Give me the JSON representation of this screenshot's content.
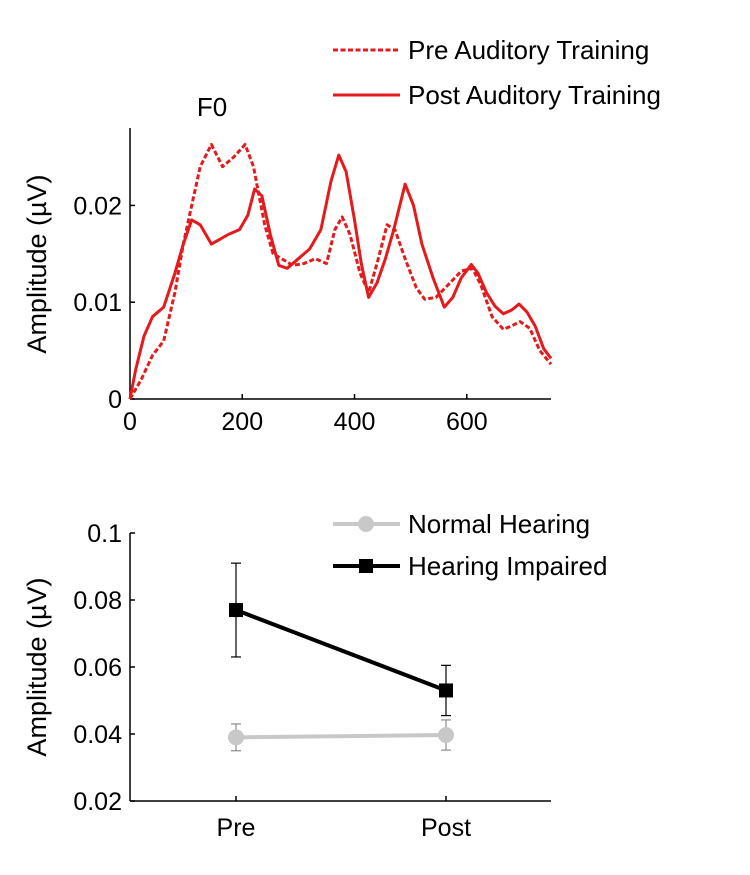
{
  "chart_data": [
    {
      "type": "line",
      "title": "F0",
      "xlabel": "",
      "ylabel": "Amplitude (µV)",
      "xlim": [
        0,
        750
      ],
      "ylim": [
        0,
        0.028
      ],
      "x_ticks": [
        "0",
        "200",
        "400",
        "600"
      ],
      "y_ticks": [
        "0",
        "0.01",
        "0.02"
      ],
      "grid": false,
      "legend_position": "top-right, outside",
      "series": [
        {
          "name": "Pre Auditory Training",
          "style": "dashed",
          "color": "#e41a1c",
          "points": [
            [
              0,
              0
            ],
            [
              20,
              0.002
            ],
            [
              40,
              0.0045
            ],
            [
              60,
              0.006
            ],
            [
              80,
              0.011
            ],
            [
              95,
              0.016
            ],
            [
              110,
              0.02
            ],
            [
              125,
              0.024
            ],
            [
              145,
              0.0263
            ],
            [
              165,
              0.024
            ],
            [
              185,
              0.025
            ],
            [
              205,
              0.0263
            ],
            [
              220,
              0.024
            ],
            [
              240,
              0.018
            ],
            [
              255,
              0.015
            ],
            [
              270,
              0.0145
            ],
            [
              290,
              0.0138
            ],
            [
              310,
              0.014
            ],
            [
              330,
              0.0145
            ],
            [
              350,
              0.014
            ],
            [
              365,
              0.0175
            ],
            [
              378,
              0.0188
            ],
            [
              392,
              0.017
            ],
            [
              410,
              0.013
            ],
            [
              425,
              0.011
            ],
            [
              440,
              0.014
            ],
            [
              458,
              0.018
            ],
            [
              472,
              0.0175
            ],
            [
              490,
              0.0145
            ],
            [
              510,
              0.0115
            ],
            [
              525,
              0.0103
            ],
            [
              545,
              0.0105
            ],
            [
              570,
              0.012
            ],
            [
              590,
              0.0132
            ],
            [
              610,
              0.0135
            ],
            [
              625,
              0.0118
            ],
            [
              645,
              0.0085
            ],
            [
              665,
              0.0072
            ],
            [
              678,
              0.0075
            ],
            [
              695,
              0.008
            ],
            [
              712,
              0.0073
            ],
            [
              730,
              0.005
            ],
            [
              750,
              0.0036
            ]
          ]
        },
        {
          "name": "Post Auditory Training",
          "style": "solid",
          "color": "#e41a1c",
          "points": [
            [
              0,
              0
            ],
            [
              10,
              0.003
            ],
            [
              25,
              0.0065
            ],
            [
              40,
              0.0085
            ],
            [
              60,
              0.0095
            ],
            [
              80,
              0.013
            ],
            [
              95,
              0.016
            ],
            [
              110,
              0.0185
            ],
            [
              125,
              0.018
            ],
            [
              145,
              0.016
            ],
            [
              160,
              0.0165
            ],
            [
              175,
              0.017
            ],
            [
              195,
              0.0175
            ],
            [
              210,
              0.019
            ],
            [
              222,
              0.0217
            ],
            [
              235,
              0.021
            ],
            [
              250,
              0.017
            ],
            [
              265,
              0.0138
            ],
            [
              280,
              0.0135
            ],
            [
              300,
              0.0145
            ],
            [
              320,
              0.0155
            ],
            [
              340,
              0.0175
            ],
            [
              358,
              0.0225
            ],
            [
              372,
              0.0252
            ],
            [
              385,
              0.0235
            ],
            [
              400,
              0.0185
            ],
            [
              412,
              0.014
            ],
            [
              425,
              0.0105
            ],
            [
              440,
              0.012
            ],
            [
              455,
              0.0145
            ],
            [
              470,
              0.0175
            ],
            [
              490,
              0.0222
            ],
            [
              505,
              0.02
            ],
            [
              520,
              0.016
            ],
            [
              540,
              0.0125
            ],
            [
              560,
              0.0095
            ],
            [
              575,
              0.0105
            ],
            [
              590,
              0.0125
            ],
            [
              608,
              0.0139
            ],
            [
              620,
              0.013
            ],
            [
              635,
              0.011
            ],
            [
              650,
              0.0096
            ],
            [
              665,
              0.0088
            ],
            [
              680,
              0.0092
            ],
            [
              693,
              0.0098
            ],
            [
              707,
              0.009
            ],
            [
              722,
              0.0075
            ],
            [
              737,
              0.0052
            ],
            [
              750,
              0.0042
            ]
          ]
        }
      ]
    },
    {
      "type": "line",
      "title": "",
      "xlabel": "",
      "ylabel": "Amplitude (µV)",
      "categories": [
        "Pre",
        "Post"
      ],
      "ylim": [
        0.02,
        0.1
      ],
      "y_ticks": [
        "0.02",
        "0.04",
        "0.06",
        "0.08",
        "0.1"
      ],
      "grid": false,
      "legend_position": "top-right",
      "series": [
        {
          "name": "Normal Hearing",
          "marker": "circle",
          "color": "#c8c8c8",
          "values": [
            0.039,
            0.0397
          ],
          "error": [
            0.004,
            0.0045
          ]
        },
        {
          "name": "Hearing Impaired",
          "marker": "square",
          "color": "#000000",
          "values": [
            0.077,
            0.053
          ],
          "error": [
            0.014,
            0.0075
          ]
        }
      ]
    }
  ]
}
